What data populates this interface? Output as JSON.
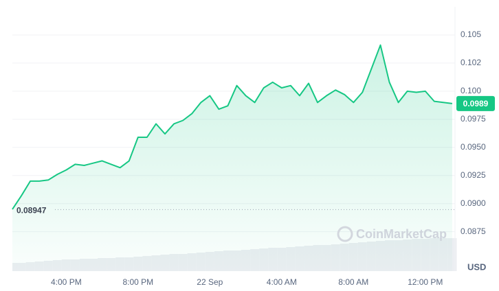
{
  "chart_data": {
    "type": "line",
    "categories": [
      null,
      null,
      null,
      null,
      null,
      null,
      "4:00 PM",
      null,
      null,
      null,
      null,
      null,
      null,
      null,
      "8:00 PM",
      null,
      null,
      null,
      null,
      null,
      null,
      null,
      "22 Sep",
      null,
      null,
      null,
      null,
      null,
      null,
      null,
      "4:00 AM",
      null,
      null,
      null,
      null,
      null,
      null,
      null,
      "8:00 AM",
      null,
      null,
      null,
      null,
      null,
      null,
      null,
      "12:00 PM",
      null,
      null,
      null
    ],
    "values": [
      0.0895,
      0.0907,
      0.092,
      0.092,
      0.0921,
      0.0926,
      0.093,
      0.0935,
      0.0934,
      0.0936,
      0.0938,
      0.0935,
      0.0932,
      0.0938,
      0.0959,
      0.0959,
      0.0971,
      0.0962,
      0.0971,
      0.0974,
      0.098,
      0.099,
      0.0996,
      0.0984,
      0.0987,
      0.1005,
      0.0996,
      0.099,
      0.1003,
      0.1008,
      0.1003,
      0.1005,
      0.0996,
      0.1007,
      0.099,
      0.0996,
      0.1001,
      0.0997,
      0.099,
      0.0999,
      0.102,
      0.1041,
      0.1008,
      0.099,
      0.1,
      0.0999,
      0.1,
      0.0991,
      0.099,
      0.0989
    ],
    "color": "#16c784",
    "ylim": [
      0.084,
      0.1075
    ],
    "yticks": [
      0.105,
      {
        "value": 0.1025,
        "label": "0.102"
      },
      {
        "value": 0.1,
        "label": "0.100"
      },
      0.0975,
      {
        "value": 0.095,
        "label": "0.0950"
      },
      0.0925,
      {
        "value": 0.09,
        "label": "0.0900"
      },
      0.0875
    ],
    "grid": true,
    "open_value": 0.08947,
    "volume": [
      12,
      12,
      13,
      14,
      15,
      16,
      17,
      17,
      18,
      18,
      19,
      19,
      20,
      20,
      21,
      22,
      23,
      24,
      25,
      25,
      26,
      27,
      28,
      29,
      30,
      30,
      31,
      32,
      33,
      34,
      34,
      35,
      36,
      37,
      38,
      38,
      39,
      40,
      41,
      42,
      43,
      44,
      45,
      45,
      46,
      47,
      47,
      48,
      48,
      48
    ],
    "volume_color": "#eceef2",
    "y2lim": [
      0,
      100
    ],
    "currency": "USD",
    "watermark": "CoinMarketCap"
  }
}
